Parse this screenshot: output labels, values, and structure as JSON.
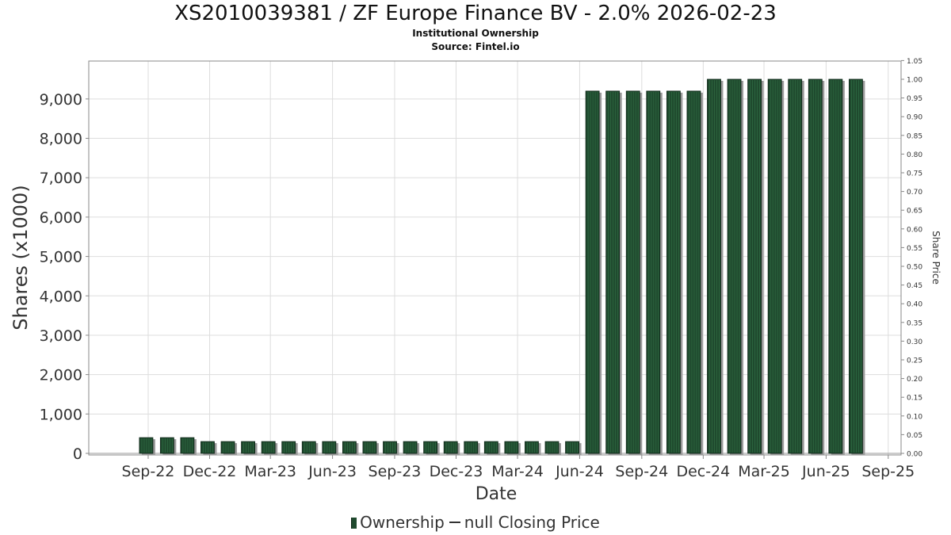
{
  "title": "XS2010039381 / ZF Europe Finance BV - 2.0% 2026-02-23",
  "subtitle1": "Institutional Ownership",
  "subtitle2": "Source: Fintel.io",
  "legend": {
    "ownership": "Ownership",
    "price": "null Closing Price"
  },
  "colors": {
    "bar": "#1f4a2e",
    "bar_shadow": "#9a9a9a",
    "grid": "#dddddd"
  },
  "chart_data": {
    "type": "bar",
    "xlabel": "Date",
    "ylabel": "Shares (x1000)",
    "y2label": "Share Price",
    "ylim": [
      0,
      9900
    ],
    "y2lim": [
      0,
      1.05
    ],
    "grid": true,
    "legend_position": "bottom",
    "yticks": [
      "0",
      "1,000",
      "2,000",
      "3,000",
      "4,000",
      "5,000",
      "6,000",
      "7,000",
      "8,000",
      "9,000"
    ],
    "y2ticks": [
      "0.00",
      "0.05",
      "0.10",
      "0.15",
      "0.20",
      "0.25",
      "0.30",
      "0.35",
      "0.40",
      "0.45",
      "0.50",
      "0.55",
      "0.60",
      "0.65",
      "0.70",
      "0.75",
      "0.80",
      "0.85",
      "0.90",
      "0.95",
      "1.00",
      "1.05"
    ],
    "xticks": [
      {
        "label": "Sep-22",
        "date": "2022-09-01"
      },
      {
        "label": "Dec-22",
        "date": "2022-12-01"
      },
      {
        "label": "Mar-23",
        "date": "2023-03-01"
      },
      {
        "label": "Jun-23",
        "date": "2023-06-01"
      },
      {
        "label": "Sep-23",
        "date": "2023-09-01"
      },
      {
        "label": "Dec-23",
        "date": "2023-12-01"
      },
      {
        "label": "Mar-24",
        "date": "2024-03-01"
      },
      {
        "label": "Jun-24",
        "date": "2024-06-01"
      },
      {
        "label": "Sep-24",
        "date": "2024-09-01"
      },
      {
        "label": "Dec-24",
        "date": "2024-12-01"
      },
      {
        "label": "Mar-25",
        "date": "2025-03-01"
      },
      {
        "label": "Jun-25",
        "date": "2025-06-01"
      },
      {
        "label": "Sep-25",
        "date": "2025-09-01"
      }
    ],
    "xlim": [
      "2022-06-05",
      "2025-09-20"
    ],
    "series": [
      {
        "name": "Ownership",
        "dates": [
          "2022-08-29",
          "2022-09-29",
          "2022-10-29",
          "2022-11-28",
          "2022-12-28",
          "2023-01-27",
          "2023-02-26",
          "2023-03-28",
          "2023-04-27",
          "2023-05-27",
          "2023-06-26",
          "2023-07-26",
          "2023-08-25",
          "2023-09-24",
          "2023-10-24",
          "2023-11-23",
          "2023-12-23",
          "2024-01-22",
          "2024-02-21",
          "2024-03-22",
          "2024-04-21",
          "2024-05-21",
          "2024-06-20",
          "2024-07-20",
          "2024-08-19",
          "2024-09-18",
          "2024-10-18",
          "2024-11-17",
          "2024-12-17",
          "2025-01-16",
          "2025-02-15",
          "2025-03-17",
          "2025-04-16",
          "2025-05-16",
          "2025-06-15",
          "2025-07-15"
        ],
        "values": [
          400,
          400,
          400,
          300,
          300,
          300,
          300,
          300,
          300,
          300,
          300,
          300,
          300,
          300,
          300,
          300,
          300,
          300,
          300,
          300,
          300,
          300,
          9200,
          9200,
          9200,
          9200,
          9200,
          9200,
          9500,
          9500,
          9500,
          9500,
          9500,
          9500,
          9500,
          9500
        ]
      }
    ]
  }
}
